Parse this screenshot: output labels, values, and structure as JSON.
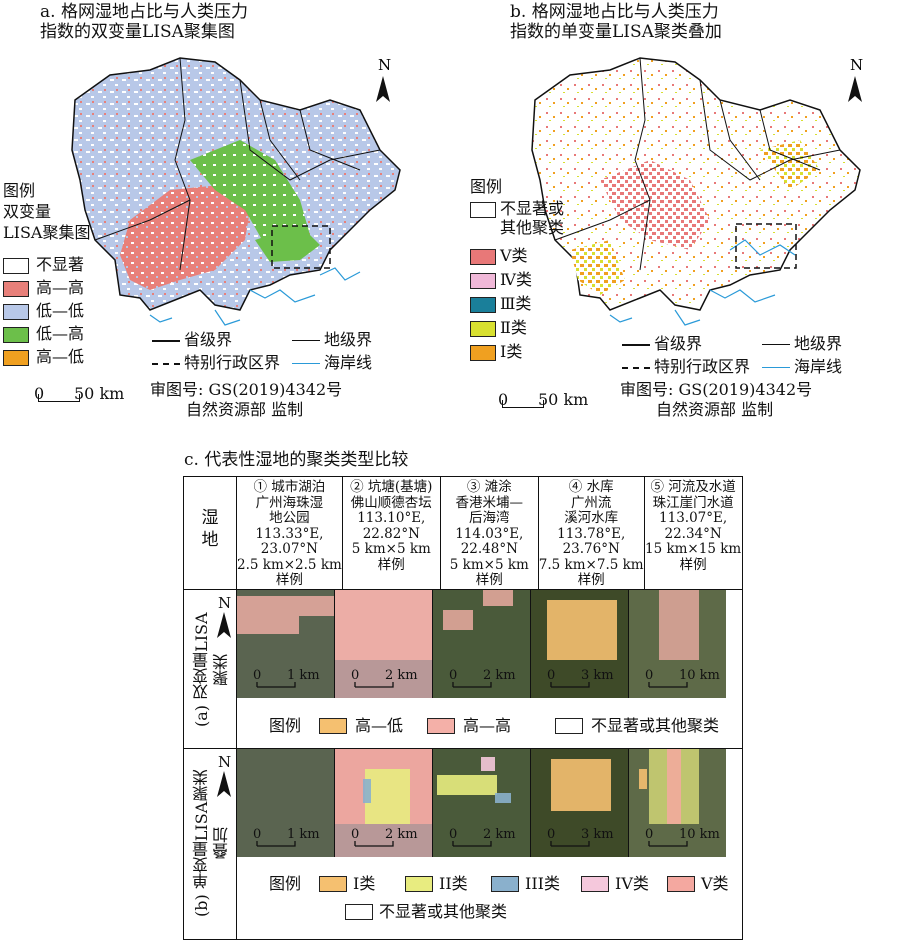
{
  "panel_a": {
    "title_line1": "a. 格网湿地占比与人类压力",
    "title_line2": "指数的双变量LISA聚集图",
    "legend_title1": "图例",
    "legend_title2": "双变量",
    "legend_title3": "LISA聚集图",
    "legend_items": [
      {
        "label": "不显著",
        "color": "#ffffff"
      },
      {
        "label": "高—高",
        "color": "#e8807a"
      },
      {
        "label": "低—低",
        "color": "#b8c8e8"
      },
      {
        "label": "低—高",
        "color": "#6cbf4a"
      },
      {
        "label": "高—低",
        "color": "#f0a020"
      }
    ],
    "scale_zero": "0",
    "scale_label": "50 km",
    "north": "N"
  },
  "panel_b": {
    "title_line1": "b. 格网湿地占比与人类压力",
    "title_line2": "指数的单变量LISA聚类叠加",
    "legend_title": "图例",
    "legend_items": [
      {
        "label": "不显著或",
        "label2": "其他聚类",
        "color": "#ffffff"
      },
      {
        "label": "Ⅴ类",
        "color": "#e87878"
      },
      {
        "label": "Ⅳ类",
        "color": "#f0b8d8"
      },
      {
        "label": "Ⅲ类",
        "color": "#1a7f9a"
      },
      {
        "label": "Ⅱ类",
        "color": "#d8e030"
      },
      {
        "label": "Ⅰ类",
        "color": "#f0a020"
      }
    ],
    "scale_zero": "0",
    "scale_label": "50 km",
    "north": "N"
  },
  "boundary_legend": {
    "province": "省级界",
    "prefecture": "地级界",
    "sar": "特别行政区界",
    "coastline": "海岸线",
    "approval_no": "审图号: GS(2019)4342号",
    "supervisor": "自然资源部 监制"
  },
  "panel_c": {
    "title": "c. 代表性湿地的聚类类型比较",
    "row_header": "湿地",
    "row_a_label": "(a) 双变量LISA聚类",
    "row_b_label": "(b) 单变量LISA聚类叠加",
    "columns": [
      {
        "lines": [
          "① 城市湖泊",
          "广州海珠湿",
          "地公园",
          "113.33°E,",
          "23.07°N",
          "2.5 km×2.5 km",
          "样例"
        ],
        "scale": "1 km"
      },
      {
        "lines": [
          "② 坑塘(基塘)",
          "佛山顺德杏坛",
          "113.10°E,",
          "22.82°N",
          "5 km×5 km",
          "样例"
        ],
        "scale": "2 km"
      },
      {
        "lines": [
          "③ 滩涂",
          "香港米埔—",
          "后海湾",
          "114.03°E,",
          "22.48°N",
          "5 km×5 km",
          "样例"
        ],
        "scale": "2 km"
      },
      {
        "lines": [
          "④ 水库",
          "广州流",
          "溪河水库",
          "113.78°E,",
          "23.76°N",
          "7.5 km×7.5 km",
          "样例"
        ],
        "scale": "3 km"
      },
      {
        "lines": [
          "⑤ 河流及水道",
          "珠江崖门水道",
          "113.07°E,",
          "22.34°N",
          "15 km×15 km",
          "样例"
        ],
        "scale": "10 km"
      }
    ],
    "scale_zero": "0",
    "legend_a": {
      "title": "图例",
      "items": [
        {
          "label": "高—低",
          "color": "#f5c070"
        },
        {
          "label": "高—高",
          "color": "#f4b0a8"
        },
        {
          "label": "不显著或其他聚类",
          "color": "#ffffff"
        }
      ]
    },
    "legend_b": {
      "title": "图例",
      "items": [
        {
          "label": "I类",
          "color": "#f5c070"
        },
        {
          "label": "II类",
          "color": "#e8ec80"
        },
        {
          "label": "III类",
          "color": "#8ab0cc"
        },
        {
          "label": "IV类",
          "color": "#f5c8dc"
        },
        {
          "label": "V类",
          "color": "#f4a8a0"
        },
        {
          "label": "不显著或其他聚类",
          "color": "#ffffff"
        }
      ]
    },
    "north": "N"
  }
}
